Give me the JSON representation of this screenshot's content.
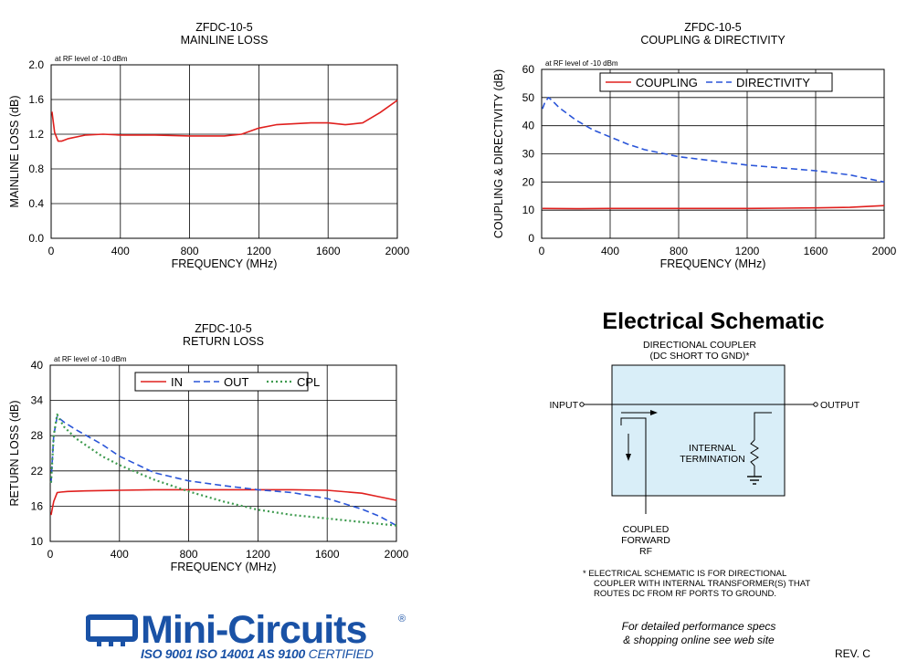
{
  "chart_data": [
    {
      "id": "mainline",
      "type": "line",
      "title": "ZFDC-10-5",
      "subtitle": "MAINLINE LOSS",
      "note": "at RF level of -10 dBm",
      "xlabel": "FREQUENCY (MHz)",
      "ylabel": "MAINLINE LOSS (dB)",
      "xlim": [
        0,
        2000
      ],
      "ylim": [
        0.0,
        2.0
      ],
      "xticks": [
        "0",
        "400",
        "800",
        "1200",
        "1600",
        "2000"
      ],
      "yticks": [
        "0.0",
        "0.4",
        "0.8",
        "1.2",
        "1.6",
        "2.0"
      ],
      "grid": true,
      "series": [
        {
          "color": "#e0201e",
          "dash": "solid",
          "x": [
            5,
            20,
            40,
            60,
            100,
            200,
            300,
            400,
            600,
            800,
            1000,
            1100,
            1200,
            1300,
            1400,
            1500,
            1600,
            1700,
            1800,
            1900,
            2000
          ],
          "y": [
            1.46,
            1.22,
            1.12,
            1.12,
            1.15,
            1.19,
            1.2,
            1.19,
            1.19,
            1.18,
            1.18,
            1.2,
            1.27,
            1.31,
            1.32,
            1.33,
            1.33,
            1.31,
            1.33,
            1.45,
            1.59
          ]
        }
      ]
    },
    {
      "id": "coupling",
      "type": "line",
      "title": "ZFDC-10-5",
      "subtitle": "COUPLING & DIRECTIVITY",
      "note": "at RF level of -10 dBm",
      "xlabel": "FREQUENCY (MHz)",
      "ylabel": "COUPLING & DIRECTIVITY (dB)",
      "xlim": [
        0,
        2000
      ],
      "ylim": [
        0,
        60
      ],
      "xticks": [
        "0",
        "400",
        "800",
        "1200",
        "1600",
        "2000"
      ],
      "yticks": [
        "0",
        "10",
        "20",
        "30",
        "40",
        "50",
        "60"
      ],
      "grid": true,
      "legend_position": "top-right",
      "series": [
        {
          "name": "COUPLING",
          "color": "#e0201e",
          "dash": "solid",
          "x": [
            5,
            200,
            400,
            600,
            800,
            1000,
            1200,
            1400,
            1600,
            1800,
            2000
          ],
          "y": [
            10.6,
            10.5,
            10.6,
            10.6,
            10.6,
            10.6,
            10.6,
            10.7,
            10.8,
            11.0,
            11.6
          ]
        },
        {
          "name": "DIRECTIVITY",
          "color": "#2a55d8",
          "dash": "dashed",
          "x": [
            5,
            20,
            40,
            60,
            100,
            200,
            300,
            400,
            500,
            600,
            800,
            1000,
            1200,
            1400,
            1600,
            1800,
            1900,
            2000
          ],
          "y": [
            46,
            48.5,
            50,
            49,
            46.5,
            42,
            38.5,
            36,
            33.5,
            31.5,
            29,
            27.5,
            26,
            25,
            24,
            22.5,
            21.2,
            20
          ]
        }
      ]
    },
    {
      "id": "return",
      "type": "line",
      "title": "ZFDC-10-5",
      "subtitle": "RETURN LOSS",
      "note": "at RF level of -10 dBm",
      "xlabel": "FREQUENCY (MHz)",
      "ylabel": "RETURN LOSS (dB)",
      "xlim": [
        0,
        2000
      ],
      "ylim": [
        10,
        40
      ],
      "xticks": [
        "0",
        "400",
        "800",
        "1200",
        "1600",
        "2000"
      ],
      "yticks": [
        "10",
        "16",
        "22",
        "28",
        "34",
        "40"
      ],
      "grid": true,
      "legend_position": "top-right",
      "series": [
        {
          "name": "IN",
          "color": "#e0201e",
          "dash": "solid",
          "x": [
            5,
            20,
            40,
            60,
            100,
            200,
            400,
            600,
            800,
            1000,
            1200,
            1400,
            1600,
            1800,
            1900,
            2000
          ],
          "y": [
            14.5,
            16.8,
            18.3,
            18.4,
            18.5,
            18.6,
            18.7,
            18.8,
            18.8,
            18.8,
            18.8,
            18.8,
            18.7,
            18.2,
            17.6,
            17.0
          ]
        },
        {
          "name": "OUT",
          "color": "#2a55d8",
          "dash": "dashed",
          "x": [
            5,
            20,
            40,
            50,
            80,
            150,
            300,
            400,
            600,
            800,
            1000,
            1200,
            1400,
            1600,
            1800,
            1900,
            2000
          ],
          "y": [
            20,
            28,
            31.3,
            31.0,
            30.3,
            29,
            26.5,
            24.5,
            21.7,
            20.3,
            19.5,
            18.8,
            18.3,
            17.3,
            15.5,
            14.3,
            12.7
          ]
        },
        {
          "name": "CPL",
          "color": "#3d9a4e",
          "dash": "dotted",
          "x": [
            5,
            20,
            40,
            50,
            80,
            150,
            300,
            400,
            600,
            800,
            1000,
            1200,
            1400,
            1600,
            1800,
            2000
          ],
          "y": [
            20,
            28,
            31.6,
            31.0,
            29.5,
            27.5,
            24.5,
            23,
            20.5,
            18.5,
            16.8,
            15.4,
            14.5,
            13.9,
            13.3,
            12.7
          ]
        }
      ]
    }
  ],
  "schematic": {
    "title": "Electrical Schematic",
    "heading_line1": "DIRECTIONAL COUPLER",
    "heading_line2": "(DC SHORT TO GND)*",
    "input_label": "INPUT",
    "output_label": "OUTPUT",
    "termination_line1": "INTERNAL",
    "termination_line2": "TERMINATION",
    "coupled_line1": "COUPLED",
    "coupled_line2": "FORWARD",
    "coupled_line3": "RF",
    "footnote_line1": "* ELECTRICAL SCHEMATIC IS FOR DIRECTIONAL",
    "footnote_line2": "COUPLER WITH INTERNAL TRANSFORMER(S) THAT",
    "footnote_line3": "ROUTES DC FROM RF PORTS TO GROUND."
  },
  "branding": {
    "logo_text": "Mini-Circuits",
    "registered_mark": "®",
    "cert_iso": "ISO 9001  ISO 14001  AS 9100",
    "cert_suffix": " CERTIFIED",
    "brand_color": "#1a52a6"
  },
  "footer": {
    "note_line1": "For detailed performance specs",
    "note_line2": "& shopping online see web site",
    "revision": "REV. C"
  }
}
